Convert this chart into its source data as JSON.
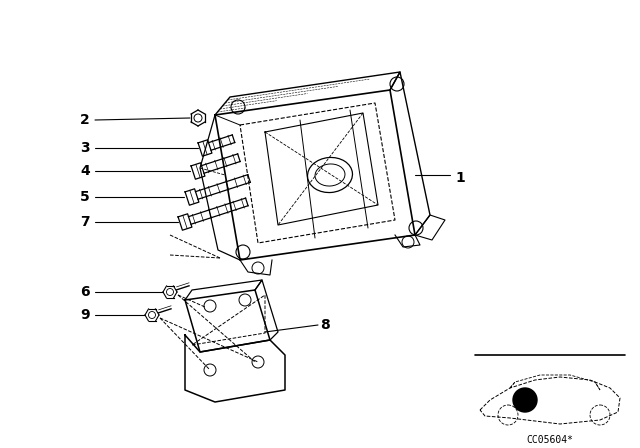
{
  "bg_color": "#ffffff",
  "line_color": "#000000",
  "fig_width": 6.4,
  "fig_height": 4.48,
  "dpi": 100,
  "catalog_code": "CC05604*"
}
